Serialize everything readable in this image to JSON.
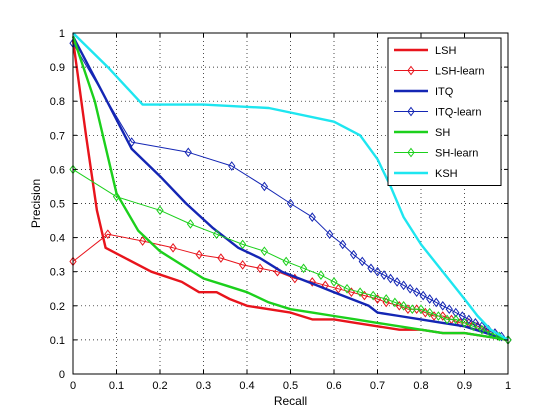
{
  "chart_data": {
    "type": "line",
    "xlabel": "Recall",
    "ylabel": "Precision",
    "xlim": [
      0,
      1
    ],
    "ylim": [
      0,
      1
    ],
    "xticks": [
      "0",
      "0.1",
      "0.2",
      "0.3",
      "0.4",
      "0.5",
      "0.6",
      "0.7",
      "0.8",
      "0.9",
      "1"
    ],
    "yticks": [
      "0",
      "0.1",
      "0.2",
      "0.3",
      "0.4",
      "0.5",
      "0.6",
      "0.7",
      "0.8",
      "0.9",
      "1"
    ],
    "grid": true,
    "legend_position": "top-right",
    "series": [
      {
        "name": "LSH",
        "color": "#e8141c",
        "marker": "none",
        "width": 2.4,
        "x": [
          0.0,
          0.03,
          0.055,
          0.075,
          0.12,
          0.18,
          0.25,
          0.29,
          0.33,
          0.36,
          0.4,
          0.45,
          0.5,
          0.55,
          0.6,
          0.65,
          0.7,
          0.75,
          0.8,
          0.85,
          0.9,
          0.95,
          1.0
        ],
        "y": [
          0.98,
          0.7,
          0.48,
          0.37,
          0.34,
          0.3,
          0.27,
          0.24,
          0.24,
          0.22,
          0.2,
          0.19,
          0.18,
          0.16,
          0.16,
          0.15,
          0.14,
          0.13,
          0.13,
          0.12,
          0.12,
          0.11,
          0.1
        ]
      },
      {
        "name": "LSH-learn",
        "color": "#e8141c",
        "marker": "diamond",
        "width": 1,
        "x": [
          0.0,
          0.08,
          0.16,
          0.23,
          0.29,
          0.34,
          0.39,
          0.43,
          0.47,
          0.51,
          0.55,
          0.58,
          0.61,
          0.64,
          0.67,
          0.7,
          0.72,
          0.75,
          0.77,
          0.79,
          0.81,
          0.83,
          0.85,
          0.87,
          0.89,
          0.91,
          0.93,
          0.95,
          0.97,
          1.0
        ],
        "y": [
          0.33,
          0.41,
          0.39,
          0.37,
          0.35,
          0.34,
          0.32,
          0.31,
          0.3,
          0.28,
          0.27,
          0.26,
          0.25,
          0.24,
          0.23,
          0.22,
          0.21,
          0.2,
          0.19,
          0.19,
          0.18,
          0.17,
          0.17,
          0.16,
          0.15,
          0.15,
          0.14,
          0.13,
          0.12,
          0.1
        ]
      },
      {
        "name": "ITQ",
        "color": "#1426b4",
        "marker": "none",
        "width": 2.4,
        "x": [
          0.0,
          0.07,
          0.135,
          0.2,
          0.26,
          0.32,
          0.38,
          0.43,
          0.48,
          0.52,
          0.56,
          0.6,
          0.64,
          0.68,
          0.7,
          0.75,
          0.8,
          0.85,
          0.9,
          0.95,
          1.0
        ],
        "y": [
          0.99,
          0.82,
          0.66,
          0.58,
          0.5,
          0.43,
          0.37,
          0.34,
          0.3,
          0.28,
          0.26,
          0.24,
          0.22,
          0.2,
          0.18,
          0.17,
          0.16,
          0.15,
          0.14,
          0.12,
          0.1
        ]
      },
      {
        "name": "ITQ-learn",
        "color": "#1426b4",
        "marker": "diamond",
        "width": 1,
        "x": [
          0.0,
          0.135,
          0.265,
          0.365,
          0.44,
          0.5,
          0.55,
          0.59,
          0.62,
          0.645,
          0.665,
          0.685,
          0.7,
          0.715,
          0.73,
          0.745,
          0.76,
          0.775,
          0.79,
          0.805,
          0.82,
          0.835,
          0.85,
          0.865,
          0.88,
          0.895,
          0.91,
          0.925,
          0.94,
          0.955,
          0.97,
          0.985,
          1.0
        ],
        "y": [
          0.97,
          0.68,
          0.65,
          0.61,
          0.55,
          0.5,
          0.46,
          0.41,
          0.38,
          0.35,
          0.33,
          0.31,
          0.3,
          0.29,
          0.28,
          0.27,
          0.26,
          0.25,
          0.24,
          0.23,
          0.22,
          0.21,
          0.2,
          0.19,
          0.18,
          0.17,
          0.16,
          0.15,
          0.14,
          0.13,
          0.12,
          0.11,
          0.1
        ]
      },
      {
        "name": "SH",
        "color": "#1cd01c",
        "marker": "none",
        "width": 2.4,
        "x": [
          0.0,
          0.05,
          0.1,
          0.15,
          0.2,
          0.25,
          0.3,
          0.35,
          0.4,
          0.45,
          0.5,
          0.55,
          0.6,
          0.65,
          0.7,
          0.75,
          0.8,
          0.85,
          0.9,
          0.95,
          1.0
        ],
        "y": [
          0.99,
          0.8,
          0.53,
          0.42,
          0.36,
          0.32,
          0.28,
          0.26,
          0.24,
          0.21,
          0.19,
          0.18,
          0.17,
          0.16,
          0.15,
          0.14,
          0.13,
          0.12,
          0.12,
          0.11,
          0.1
        ]
      },
      {
        "name": "SH-learn",
        "color": "#1cd01c",
        "marker": "diamond",
        "width": 1,
        "x": [
          0.0,
          0.1,
          0.2,
          0.27,
          0.33,
          0.39,
          0.44,
          0.49,
          0.53,
          0.57,
          0.6,
          0.63,
          0.66,
          0.69,
          0.72,
          0.74,
          0.76,
          0.78,
          0.8,
          0.82,
          0.84,
          0.86,
          0.88,
          0.9,
          0.92,
          0.94,
          0.96,
          0.98,
          1.0
        ],
        "y": [
          0.6,
          0.52,
          0.48,
          0.44,
          0.41,
          0.38,
          0.36,
          0.33,
          0.31,
          0.29,
          0.27,
          0.25,
          0.24,
          0.23,
          0.22,
          0.21,
          0.2,
          0.19,
          0.19,
          0.18,
          0.17,
          0.16,
          0.16,
          0.15,
          0.14,
          0.13,
          0.12,
          0.11,
          0.1
        ]
      },
      {
        "name": "KSH",
        "color": "#1ee6f0",
        "marker": "none",
        "width": 2.4,
        "x": [
          0.0,
          0.08,
          0.16,
          0.3,
          0.45,
          0.6,
          0.66,
          0.7,
          0.73,
          0.76,
          0.8,
          0.85,
          0.9,
          0.93,
          0.96,
          1.0
        ],
        "y": [
          1.0,
          0.9,
          0.79,
          0.79,
          0.78,
          0.74,
          0.7,
          0.63,
          0.55,
          0.46,
          0.38,
          0.3,
          0.22,
          0.17,
          0.13,
          0.1
        ]
      }
    ]
  }
}
